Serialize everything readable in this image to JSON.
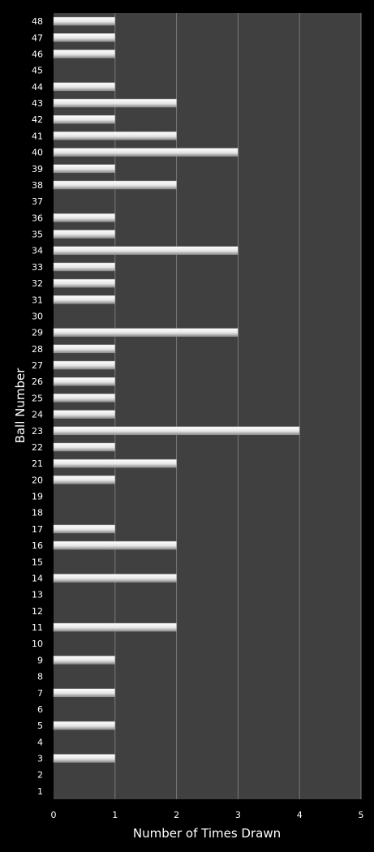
{
  "chart_data": {
    "type": "bar",
    "orientation": "horizontal",
    "title": "",
    "xlabel": "Number of Times Drawn",
    "ylabel": "Ball Number",
    "xlim": [
      0,
      5
    ],
    "xticks": [
      "0",
      "1",
      "2",
      "3",
      "4",
      "5"
    ],
    "grid": true,
    "legend": "none",
    "colors": {
      "background": "#000000",
      "plot_area": "#404040",
      "gridline": "#7a7a7a",
      "bar": "#ffffff",
      "text": "#ffffff"
    },
    "categories": [
      "1",
      "2",
      "3",
      "4",
      "5",
      "6",
      "7",
      "8",
      "9",
      "10",
      "11",
      "12",
      "13",
      "14",
      "15",
      "16",
      "17",
      "18",
      "19",
      "20",
      "21",
      "22",
      "23",
      "24",
      "25",
      "26",
      "27",
      "28",
      "29",
      "30",
      "31",
      "32",
      "33",
      "34",
      "35",
      "36",
      "37",
      "38",
      "39",
      "40",
      "41",
      "42",
      "43",
      "44",
      "45",
      "46",
      "47",
      "48"
    ],
    "values": [
      0,
      0,
      1,
      0,
      1,
      0,
      1,
      0,
      1,
      0,
      2,
      0,
      0,
      2,
      0,
      2,
      1,
      0,
      0,
      1,
      2,
      1,
      4,
      1,
      1,
      1,
      1,
      1,
      3,
      0,
      1,
      1,
      1,
      3,
      1,
      1,
      0,
      2,
      1,
      3,
      2,
      1,
      2,
      1,
      0,
      1,
      1,
      1
    ]
  }
}
